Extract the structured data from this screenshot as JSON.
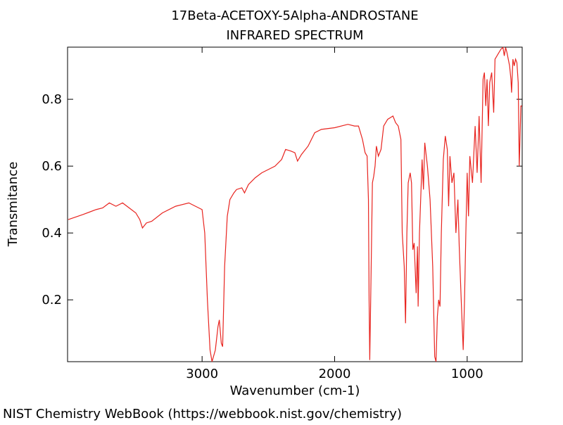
{
  "chart_data": {
    "type": "line",
    "title": "17Beta-ACETOXY-5Alpha-ANDROSTANE",
    "subtitle": "INFRARED SPECTRUM",
    "x_label": "Wavenumber (cm-1)",
    "y_label": "Transmitance",
    "footer": "NIST Chemistry WebBook (https://webbook.nist.gov/chemistry)",
    "xlim": [
      4015,
      585
    ],
    "ylim": [
      0.015,
      0.956
    ],
    "xticks": [
      3000,
      2000,
      1000
    ],
    "yticks": [
      0.2,
      0.4,
      0.6,
      0.8
    ],
    "grid": false,
    "series": [
      {
        "name": "spectrum",
        "color": "#e8241f",
        "x": [
          4010,
          3900,
          3800,
          3750,
          3700,
          3650,
          3600,
          3550,
          3500,
          3470,
          3450,
          3420,
          3380,
          3300,
          3200,
          3100,
          3050,
          3000,
          2980,
          2960,
          2940,
          2925,
          2900,
          2880,
          2870,
          2855,
          2845,
          2830,
          2810,
          2790,
          2760,
          2740,
          2700,
          2680,
          2650,
          2600,
          2550,
          2500,
          2450,
          2400,
          2370,
          2330,
          2300,
          2280,
          2250,
          2200,
          2150,
          2100,
          2000,
          1900,
          1850,
          1820,
          1790,
          1770,
          1755,
          1745,
          1740,
          1735,
          1728,
          1715,
          1705,
          1695,
          1685,
          1670,
          1650,
          1630,
          1600,
          1560,
          1540,
          1520,
          1500,
          1490,
          1475,
          1465,
          1455,
          1445,
          1430,
          1420,
          1410,
          1400,
          1385,
          1375,
          1370,
          1360,
          1340,
          1330,
          1320,
          1300,
          1280,
          1260,
          1245,
          1235,
          1225,
          1215,
          1205,
          1195,
          1180,
          1165,
          1150,
          1140,
          1130,
          1115,
          1100,
          1085,
          1070,
          1060,
          1045,
          1030,
          1020,
          1010,
          1000,
          990,
          980,
          960,
          940,
          925,
          910,
          895,
          880,
          870,
          860,
          850,
          840,
          830,
          815,
          800,
          790,
          775,
          760,
          745,
          730,
          720,
          710,
          700,
          690,
          680,
          670,
          665,
          655,
          645,
          635,
          625,
          615,
          607,
          595,
          587
        ],
        "values": [
          0.44,
          0.455,
          0.47,
          0.475,
          0.49,
          0.48,
          0.49,
          0.475,
          0.46,
          0.44,
          0.415,
          0.43,
          0.435,
          0.46,
          0.48,
          0.49,
          0.48,
          0.47,
          0.4,
          0.2,
          0.05,
          0.015,
          0.05,
          0.12,
          0.14,
          0.07,
          0.06,
          0.3,
          0.45,
          0.5,
          0.52,
          0.53,
          0.535,
          0.52,
          0.545,
          0.565,
          0.58,
          0.59,
          0.6,
          0.62,
          0.65,
          0.645,
          0.64,
          0.615,
          0.635,
          0.66,
          0.7,
          0.71,
          0.715,
          0.725,
          0.72,
          0.72,
          0.68,
          0.64,
          0.63,
          0.5,
          0.2,
          0.02,
          0.2,
          0.55,
          0.57,
          0.6,
          0.66,
          0.63,
          0.65,
          0.72,
          0.74,
          0.75,
          0.73,
          0.72,
          0.68,
          0.4,
          0.3,
          0.13,
          0.4,
          0.55,
          0.58,
          0.55,
          0.35,
          0.37,
          0.22,
          0.36,
          0.18,
          0.4,
          0.62,
          0.53,
          0.67,
          0.6,
          0.5,
          0.3,
          0.03,
          0.015,
          0.15,
          0.2,
          0.18,
          0.4,
          0.62,
          0.69,
          0.65,
          0.48,
          0.63,
          0.55,
          0.58,
          0.4,
          0.5,
          0.36,
          0.2,
          0.05,
          0.2,
          0.4,
          0.58,
          0.45,
          0.63,
          0.55,
          0.72,
          0.58,
          0.75,
          0.55,
          0.86,
          0.88,
          0.78,
          0.86,
          0.72,
          0.85,
          0.88,
          0.76,
          0.92,
          0.93,
          0.94,
          0.95,
          0.955,
          0.93,
          0.955,
          0.94,
          0.92,
          0.9,
          0.86,
          0.82,
          0.92,
          0.9,
          0.92,
          0.91,
          0.85,
          0.6,
          0.78,
          0.78
        ]
      }
    ]
  }
}
